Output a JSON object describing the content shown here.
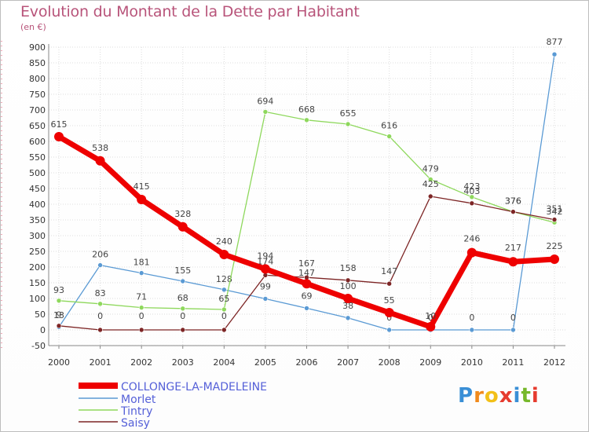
{
  "chart_data": {
    "type": "line",
    "title": "Evolution du Montant de la Dette par Habitant",
    "subtitle": "(en €)",
    "x": [
      "2000",
      "2001",
      "2002",
      "2003",
      "2004",
      "2005",
      "2006",
      "2007",
      "2008",
      "2009",
      "2010",
      "2011",
      "2012"
    ],
    "ylim": [
      -50,
      900
    ],
    "yticks": [
      -50,
      0,
      50,
      100,
      150,
      200,
      250,
      300,
      350,
      400,
      450,
      500,
      550,
      600,
      650,
      700,
      750,
      800,
      850,
      900
    ],
    "series": [
      {
        "name": "Morlet",
        "color": "#5a9ad4",
        "width": 1.3,
        "dot": 3,
        "values": [
          9,
          206,
          181,
          155,
          128,
          99,
          69,
          38,
          0,
          0,
          0,
          0,
          877
        ],
        "labels": [
          "9",
          "206",
          "181",
          "155",
          "128",
          "99",
          "69",
          "38",
          "0",
          "0",
          "0",
          "0",
          "877"
        ]
      },
      {
        "name": "Tintry",
        "color": "#8ed85c",
        "width": 1.3,
        "dot": 3,
        "values": [
          93,
          83,
          71,
          68,
          65,
          694,
          668,
          655,
          616,
          479,
          423,
          376,
          342
        ],
        "labels": [
          "93",
          "83",
          "71",
          "68",
          "65",
          "694",
          "668",
          "655",
          "616",
          "479",
          "423",
          "376",
          "342"
        ]
      },
      {
        "name": "Saisy",
        "color": "#7d2525",
        "width": 1.3,
        "dot": 3,
        "values": [
          13,
          0,
          0,
          0,
          0,
          174,
          167,
          158,
          147,
          425,
          403,
          376,
          351
        ],
        "labels": [
          "13",
          "0",
          "0",
          "0",
          "0",
          "174",
          "167",
          "158",
          "147",
          "425",
          "403",
          "376",
          "351"
        ]
      },
      {
        "name": "COLLONGE-LA-MADELEINE",
        "color": "#ee0000",
        "width": 7,
        "dot": 6,
        "values": [
          615,
          538,
          415,
          328,
          240,
          194,
          147,
          100,
          55,
          10,
          246,
          217,
          225
        ],
        "labels": [
          "615",
          "538",
          "415",
          "328",
          "240",
          "194",
          "147",
          "100",
          "55",
          "10",
          "246",
          "217",
          "225"
        ]
      }
    ],
    "legend": [
      "COLLONGE-LA-MADELEINE",
      "Morlet",
      "Tintry",
      "Saisy"
    ]
  },
  "logo": {
    "letters": [
      "P",
      "r",
      "o",
      "x",
      "i",
      "t",
      "i"
    ],
    "colors": [
      "#3a8fd6",
      "#f08a1c",
      "#f2c018",
      "#e63c2f",
      "#3a8fd6",
      "#76b82a",
      "#e63c2f"
    ]
  }
}
